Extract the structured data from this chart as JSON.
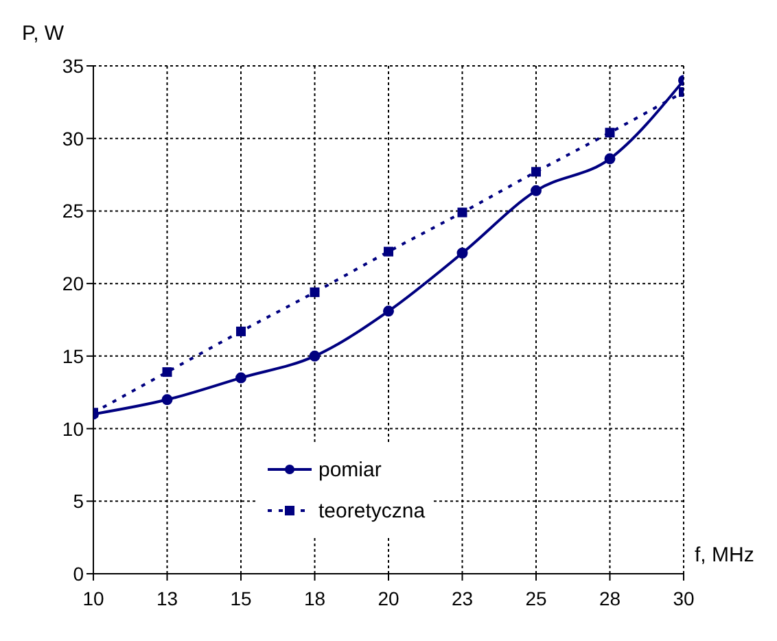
{
  "chart_data": {
    "type": "line",
    "xlabel": "f, MHz",
    "ylabel": "P, W",
    "categories": [
      "10",
      "13",
      "15",
      "18",
      "20",
      "23",
      "25",
      "28",
      "30"
    ],
    "ylim": [
      0,
      35
    ],
    "yticks": [
      0,
      5,
      10,
      15,
      20,
      25,
      30,
      35
    ],
    "grid": true,
    "legend": "bottom",
    "series": [
      {
        "name": "pomiar",
        "color": "#000080",
        "marker": "circle",
        "line_style": "solid",
        "values": [
          11,
          12,
          13.5,
          15,
          18.1,
          22.1,
          26.4,
          28.6,
          34
        ]
      },
      {
        "name": "teoretyczna",
        "color": "#000080",
        "marker": "square",
        "line_style": "dotted",
        "values": [
          11.1,
          13.9,
          16.7,
          19.4,
          22.2,
          24.9,
          27.7,
          30.4,
          33.2
        ]
      }
    ]
  }
}
